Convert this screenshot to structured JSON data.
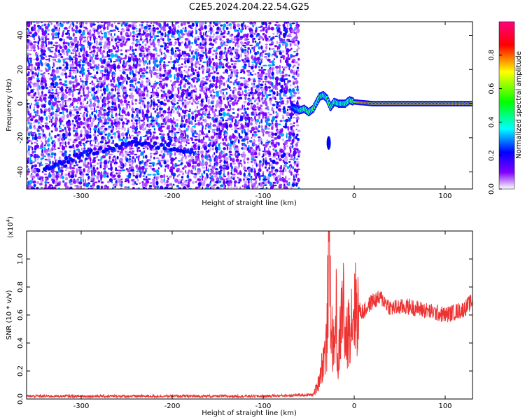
{
  "title": "C2E5.2024.204.22.54.G25",
  "chart_data": [
    {
      "type": "heatmap",
      "name": "spectrogram",
      "xlabel": "Height of straight line (km)",
      "ylabel": "Frequency (Hz)",
      "xlim": [
        -360,
        130
      ],
      "ylim": [
        -50,
        48
      ],
      "xticks": [
        -300,
        -200,
        -100,
        0,
        100
      ],
      "yticks": [
        -40,
        -20,
        0,
        20,
        40
      ],
      "colorbar": {
        "label": "Normalized spectral amplitude",
        "range": [
          0,
          1
        ],
        "ticks": [
          "0.0",
          "0.2",
          "0.4",
          "0.6",
          "0.8"
        ],
        "colormap": [
          "#ffffff",
          "#8000ff",
          "#0000ff",
          "#00ffff",
          "#00ff00",
          "#ffff00",
          "#ff0000",
          "#ff0080"
        ]
      },
      "noise_region_x": [
        -360,
        -62
      ],
      "noise_amplitude": 0.25,
      "faint_streaks": [
        {
          "x": [
            -340,
            -300
          ],
          "y": [
            -38,
            -30
          ]
        },
        {
          "x": [
            -300,
            -240
          ],
          "y": [
            -30,
            -22
          ]
        },
        {
          "x": [
            -240,
            -180
          ],
          "y": [
            -22,
            -28
          ]
        }
      ],
      "signal_trace": [
        {
          "x": -68,
          "y": -2,
          "amp": 0.3
        },
        {
          "x": -60,
          "y": -4,
          "amp": 0.45
        },
        {
          "x": -55,
          "y": -3,
          "amp": 0.6
        },
        {
          "x": -50,
          "y": -5,
          "amp": 0.55
        },
        {
          "x": -45,
          "y": -3,
          "amp": 0.6
        },
        {
          "x": -42,
          "y": 0,
          "amp": 0.55
        },
        {
          "x": -38,
          "y": 4,
          "amp": 0.6
        },
        {
          "x": -34,
          "y": 5,
          "amp": 0.5
        },
        {
          "x": -30,
          "y": 3,
          "amp": 0.55
        },
        {
          "x": -26,
          "y": -2,
          "amp": 0.6
        },
        {
          "x": -22,
          "y": 1,
          "amp": 0.55
        },
        {
          "x": -17,
          "y": 0,
          "amp": 0.5
        },
        {
          "x": -10,
          "y": 0,
          "amp": 0.55
        },
        {
          "x": -5,
          "y": 2,
          "amp": 0.5
        },
        {
          "x": 0,
          "y": 1,
          "amp": 0.7
        },
        {
          "x": 20,
          "y": 0,
          "amp": 0.9
        },
        {
          "x": 60,
          "y": 0,
          "amp": 0.9
        },
        {
          "x": 100,
          "y": 0,
          "amp": 0.9
        },
        {
          "x": 130,
          "y": 0,
          "amp": 0.9
        }
      ],
      "signal_blob": {
        "x": -28,
        "y": [
          -27,
          -19
        ]
      }
    },
    {
      "type": "line",
      "name": "snr",
      "xlabel": "Height of straight line (km)",
      "ylabel": "SNR (10 * v/v)",
      "y_multiplier": "(x10",
      "y_multiplier_exp": "4",
      "y_multiplier_close": ")",
      "xlim": [
        -360,
        130
      ],
      "ylim": [
        0,
        1.2
      ],
      "xticks": [
        -300,
        -200,
        -100,
        0,
        100
      ],
      "yticks": [
        "0.0",
        "0.2",
        "0.4",
        "0.6",
        "0.8",
        "1.0"
      ],
      "color": "#ee3333",
      "series": [
        {
          "x": [
            -360,
            -300,
            -200,
            -100,
            -45,
            -40,
            -35,
            -30,
            -28,
            -25,
            -22,
            -20,
            -18,
            -15,
            -12,
            -10,
            -5,
            0,
            10,
            20,
            30,
            40,
            60,
            80,
            100,
            120,
            130
          ],
          "y": [
            0.02,
            0.02,
            0.02,
            0.02,
            0.03,
            0.1,
            0.25,
            0.4,
            1.15,
            0.5,
            0.3,
            0.7,
            0.2,
            0.5,
            0.75,
            0.35,
            0.55,
            0.65,
            0.62,
            0.7,
            0.72,
            0.65,
            0.66,
            0.63,
            0.6,
            0.64,
            0.7
          ]
        }
      ]
    }
  ]
}
